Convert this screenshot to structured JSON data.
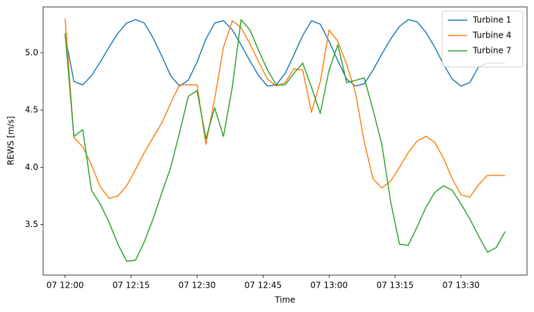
{
  "chart_data": {
    "type": "line",
    "x_label": "Time",
    "y_label": "REWS [m/s]",
    "x": [
      "07 12:00",
      "07 12:02",
      "07 12:04",
      "07 12:06",
      "07 12:08",
      "07 12:10",
      "07 12:12",
      "07 12:14",
      "07 12:16",
      "07 12:18",
      "07 12:20",
      "07 12:22",
      "07 12:24",
      "07 12:26",
      "07 12:28",
      "07 12:30",
      "07 12:32",
      "07 12:34",
      "07 12:36",
      "07 12:38",
      "07 12:40",
      "07 12:42",
      "07 12:44",
      "07 12:46",
      "07 12:48",
      "07 12:50",
      "07 12:52",
      "07 12:54",
      "07 12:56",
      "07 12:58",
      "07 13:00",
      "07 13:02",
      "07 13:04",
      "07 13:06",
      "07 13:08",
      "07 13:10",
      "07 13:12",
      "07 13:14",
      "07 13:16",
      "07 13:18",
      "07 13:20",
      "07 13:22",
      "07 13:24",
      "07 13:26",
      "07 13:28",
      "07 13:30",
      "07 13:32",
      "07 13:34",
      "07 13:36",
      "07 13:38",
      "07 13:40"
    ],
    "series": [
      {
        "name": "Turbine 1",
        "color": "#1f77b4",
        "values": [
          5.15,
          4.75,
          4.72,
          4.8,
          4.92,
          5.05,
          5.17,
          5.26,
          5.29,
          5.26,
          5.13,
          4.97,
          4.8,
          4.71,
          4.76,
          4.92,
          5.12,
          5.26,
          5.28,
          5.2,
          5.07,
          4.93,
          4.8,
          4.71,
          4.72,
          4.82,
          4.98,
          5.15,
          5.28,
          5.25,
          5.1,
          4.93,
          4.77,
          4.71,
          4.73,
          4.85,
          4.99,
          5.12,
          5.23,
          5.29,
          5.27,
          5.18,
          5.05,
          4.9,
          4.77,
          4.71,
          4.74,
          4.88,
          4.91,
          4.91,
          4.91
        ]
      },
      {
        "name": "Turbine 4",
        "color": "#ff7f0e",
        "values": [
          5.3,
          4.26,
          4.18,
          4.02,
          3.83,
          3.73,
          3.75,
          3.84,
          3.98,
          4.13,
          4.26,
          4.39,
          4.56,
          4.72,
          4.72,
          4.72,
          4.2,
          4.6,
          5.05,
          5.28,
          5.22,
          5.08,
          4.92,
          4.77,
          4.71,
          4.74,
          4.86,
          4.85,
          4.48,
          4.75,
          5.2,
          5.1,
          4.9,
          4.65,
          4.22,
          3.9,
          3.82,
          3.88,
          4.0,
          4.13,
          4.23,
          4.27,
          4.22,
          4.08,
          3.9,
          3.76,
          3.74,
          3.85,
          3.93,
          3.93,
          3.93
        ]
      },
      {
        "name": "Turbine 7",
        "color": "#2ca02c",
        "values": [
          5.17,
          4.27,
          4.33,
          3.8,
          3.68,
          3.52,
          3.33,
          3.18,
          3.19,
          3.35,
          3.55,
          3.78,
          4.0,
          4.3,
          4.62,
          4.67,
          4.25,
          4.52,
          4.27,
          4.7,
          5.29,
          5.2,
          5.02,
          4.85,
          4.72,
          4.72,
          4.82,
          4.91,
          4.7,
          4.47,
          4.85,
          5.07,
          4.74,
          4.76,
          4.78,
          4.5,
          4.2,
          3.7,
          3.33,
          3.32,
          3.48,
          3.65,
          3.78,
          3.84,
          3.8,
          3.68,
          3.55,
          3.4,
          3.26,
          3.3,
          3.44
        ]
      }
    ],
    "xlim": [
      "07 11:55",
      "07 13:45"
    ],
    "xticks": [
      "07 12:00",
      "07 12:15",
      "07 12:30",
      "07 12:45",
      "07 13:00",
      "07 13:15",
      "07 13:30"
    ],
    "ylim": [
      3.06,
      5.4
    ],
    "yticks": [
      {
        "value": 3.5,
        "label": "3.5"
      },
      {
        "value": 4.0,
        "label": "4.0"
      },
      {
        "value": 4.5,
        "label": "4.5"
      },
      {
        "value": 5.0,
        "label": "5.0"
      }
    ],
    "grid": false,
    "legend": "upper right"
  }
}
